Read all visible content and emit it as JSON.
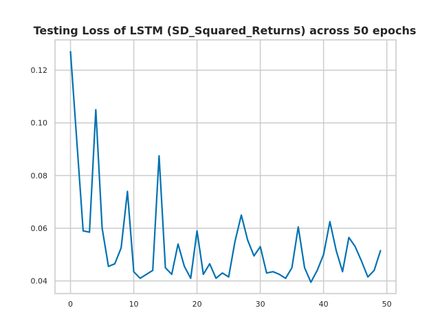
{
  "chart_data": {
    "type": "line",
    "title": "Testing Loss of LSTM (SD_Squared_Returns) across 50 epochs",
    "xlabel": "",
    "ylabel": "",
    "xlim": [
      -2.45,
      51.45
    ],
    "ylim": [
      0.0352,
      0.1315
    ],
    "xticks": [
      0,
      10,
      20,
      30,
      40,
      50
    ],
    "yticks": [
      0.04,
      0.06,
      0.08,
      0.1,
      0.12
    ],
    "xtick_labels": [
      "0",
      "10",
      "20",
      "30",
      "40",
      "50"
    ],
    "ytick_labels": [
      "0.04",
      "0.06",
      "0.08",
      "0.10",
      "0.12"
    ],
    "grid": true,
    "legend": "none",
    "series": [
      {
        "color": "#0072b2",
        "x": [
          0,
          1,
          2,
          3,
          4,
          5,
          6,
          7,
          8,
          9,
          10,
          11,
          12,
          13,
          14,
          15,
          16,
          17,
          18,
          19,
          20,
          21,
          22,
          23,
          24,
          25,
          26,
          27,
          28,
          29,
          30,
          31,
          32,
          33,
          34,
          35,
          36,
          37,
          38,
          39,
          40,
          41,
          42,
          43,
          44,
          45,
          46,
          47,
          48,
          49
        ],
        "values": [
          0.127,
          0.093,
          0.059,
          0.0585,
          0.105,
          0.06,
          0.0455,
          0.0465,
          0.0525,
          0.074,
          0.0435,
          0.041,
          0.0425,
          0.044,
          0.0875,
          0.045,
          0.0425,
          0.054,
          0.0455,
          0.041,
          0.059,
          0.0425,
          0.0465,
          0.041,
          0.043,
          0.0415,
          0.055,
          0.065,
          0.0555,
          0.0495,
          0.053,
          0.043,
          0.0435,
          0.0425,
          0.041,
          0.045,
          0.0605,
          0.045,
          0.0395,
          0.044,
          0.05,
          0.0625,
          0.0515,
          0.0435,
          0.0565,
          0.053,
          0.0475,
          0.0415,
          0.044,
          0.0515
        ]
      }
    ]
  }
}
